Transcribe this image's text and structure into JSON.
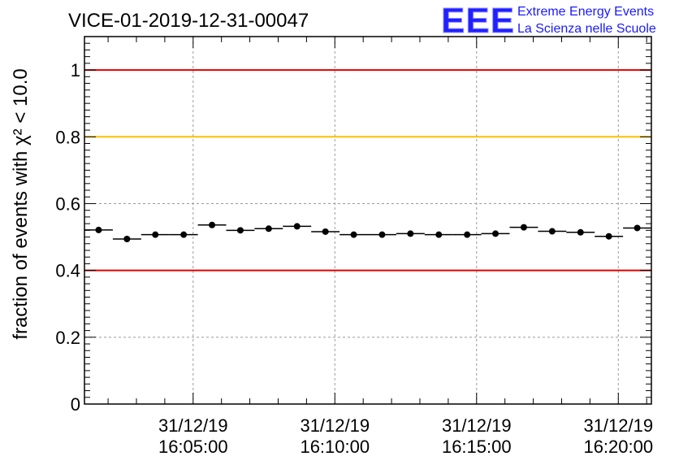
{
  "title": "VICE-01-2019-12-31-00047",
  "logo": {
    "mark": "EEE",
    "line1": "Extreme Energy Events",
    "line2": "La Scienza nelle Scuole"
  },
  "chart_data": {
    "type": "scatter",
    "title": "VICE-01-2019-12-31-00047",
    "ylabel": "fraction of events with χ² < 10.0",
    "xlabel": "",
    "ylim": [
      0,
      1.1
    ],
    "xlim": [
      "16:01:10",
      "16:21:10"
    ],
    "y_ticks": [
      0,
      0.2,
      0.4,
      0.6,
      0.8,
      1
    ],
    "y_tick_labels": [
      "0",
      "0.2",
      "0.4",
      "0.6",
      "0.8",
      "1"
    ],
    "x_ticks": [
      "16:05:00",
      "16:10:00",
      "16:15:00",
      "16:20:00"
    ],
    "x_tick_labels": [
      [
        "31/12/19",
        "16:05:00"
      ],
      [
        "31/12/19",
        "16:10:00"
      ],
      [
        "31/12/19",
        "16:15:00"
      ],
      [
        "31/12/19",
        "16:20:00"
      ]
    ],
    "grid": true,
    "bin_width_s": 60,
    "x": [
      "16:01:40",
      "16:02:40",
      "16:03:40",
      "16:04:40",
      "16:05:40",
      "16:06:40",
      "16:07:40",
      "16:08:40",
      "16:09:40",
      "16:10:40",
      "16:11:40",
      "16:12:40",
      "16:13:40",
      "16:14:40",
      "16:15:40",
      "16:16:40",
      "16:17:40",
      "16:18:40",
      "16:19:40",
      "16:20:40"
    ],
    "values": [
      0.521,
      0.494,
      0.507,
      0.507,
      0.536,
      0.52,
      0.525,
      0.532,
      0.516,
      0.507,
      0.507,
      0.51,
      0.507,
      0.507,
      0.51,
      0.529,
      0.517,
      0.514,
      0.502,
      0.527
    ],
    "reference_lines": [
      {
        "y": 1.0,
        "color": "#e00000"
      },
      {
        "y": 0.8,
        "color": "#ffbf00"
      },
      {
        "y": 0.4,
        "color": "#e00000"
      }
    ]
  }
}
